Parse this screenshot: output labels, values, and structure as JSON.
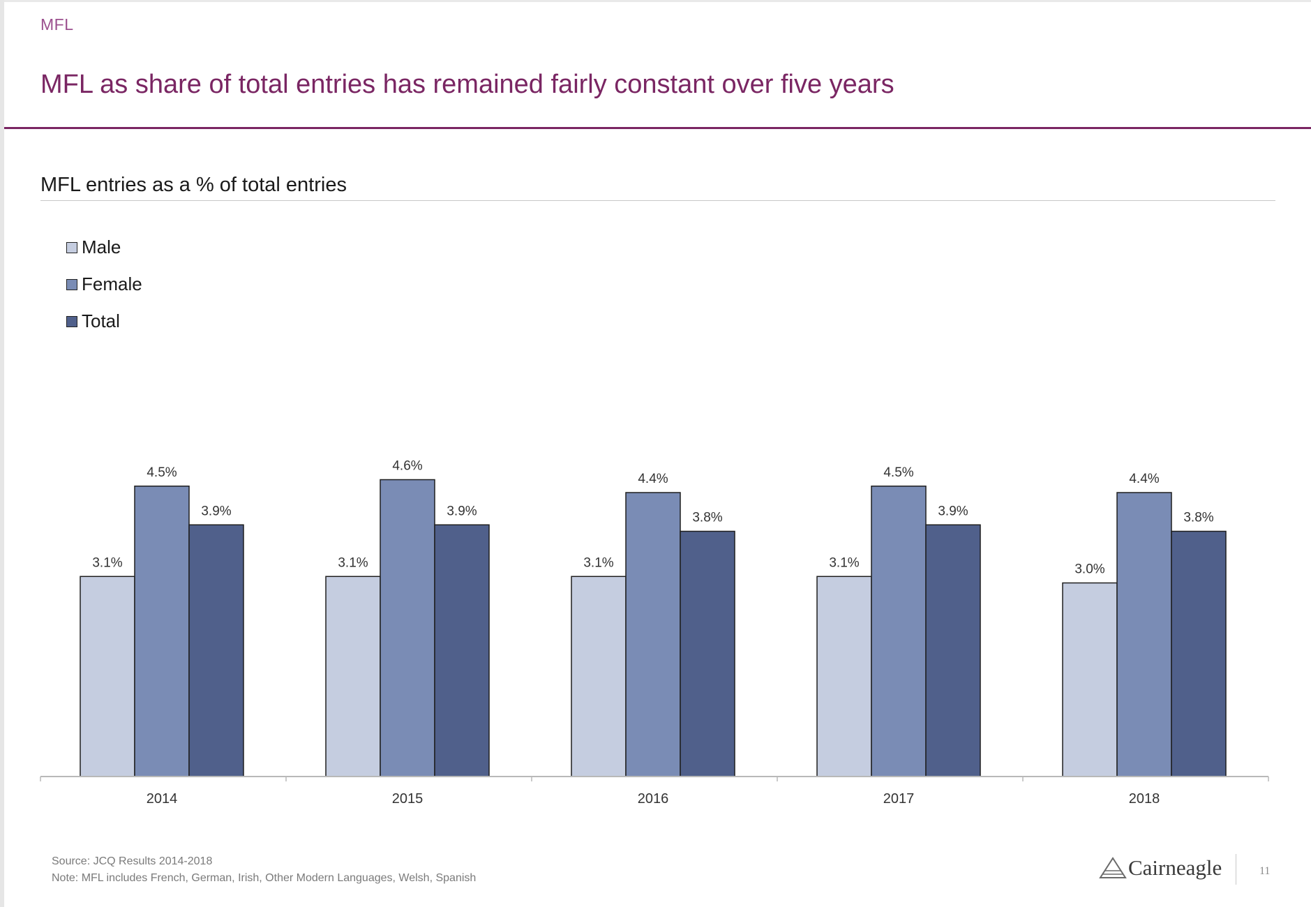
{
  "header": {
    "section": "MFL",
    "title": "MFL as share of total entries has remained fairly constant over five years"
  },
  "colors": {
    "accent": "#7a2663",
    "male": "#c5cde0",
    "female": "#7a8cb5",
    "total": "#50608b"
  },
  "chart_data": {
    "type": "bar",
    "title": "MFL entries as a % of total entries",
    "xlabel": "",
    "ylabel": "",
    "categories": [
      "2014",
      "2015",
      "2016",
      "2017",
      "2018"
    ],
    "series": [
      {
        "name": "Male",
        "values": [
          3.1,
          3.1,
          3.1,
          3.1,
          3.0
        ],
        "labels": [
          "3.1%",
          "3.1%",
          "3.1%",
          "3.1%",
          "3.0%"
        ]
      },
      {
        "name": "Female",
        "values": [
          4.5,
          4.6,
          4.4,
          4.5,
          4.4
        ],
        "labels": [
          "4.5%",
          "4.6%",
          "4.4%",
          "4.5%",
          "4.4%"
        ]
      },
      {
        "name": "Total",
        "values": [
          3.9,
          3.9,
          3.8,
          3.9,
          3.8
        ],
        "labels": [
          "3.9%",
          "3.9%",
          "3.8%",
          "3.9%",
          "3.8%"
        ]
      }
    ],
    "ylim": [
      0,
      5
    ],
    "legend_position": "top-left",
    "grid": false
  },
  "footer": {
    "source": "Source: JCQ Results 2014-2018",
    "note": "Note: MFL includes French, German, Irish, Other Modern Languages, Welsh, Spanish",
    "logo": "Cairneagle",
    "page_number": "11"
  }
}
